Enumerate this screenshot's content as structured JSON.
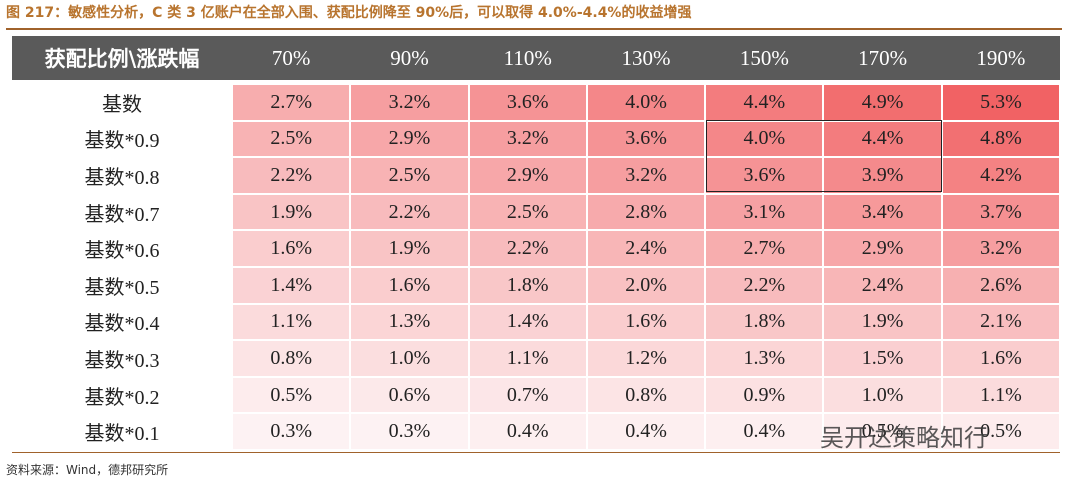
{
  "header": {
    "title": "图 217：敏感性分析，C 类 3 亿账户在全部入围、获配比例降至 90%后，可以取得 4.0%-4.4%的收益增强"
  },
  "table": {
    "columns": [
      "获配比例\\涨跌幅",
      "70%",
      "90%",
      "110%",
      "130%",
      "150%",
      "170%",
      "190%"
    ],
    "rows": [
      [
        "基数",
        "2.7%",
        "3.2%",
        "3.6%",
        "4.0%",
        "4.4%",
        "4.9%",
        "5.3%"
      ],
      [
        "基数*0.9",
        "2.5%",
        "2.9%",
        "3.2%",
        "3.6%",
        "4.0%",
        "4.4%",
        "4.8%"
      ],
      [
        "基数*0.8",
        "2.2%",
        "2.5%",
        "2.9%",
        "3.2%",
        "3.6%",
        "3.9%",
        "4.2%"
      ],
      [
        "基数*0.7",
        "1.9%",
        "2.2%",
        "2.5%",
        "2.8%",
        "3.1%",
        "3.4%",
        "3.7%"
      ],
      [
        "基数*0.6",
        "1.6%",
        "1.9%",
        "2.2%",
        "2.4%",
        "2.7%",
        "2.9%",
        "3.2%"
      ],
      [
        "基数*0.5",
        "1.4%",
        "1.6%",
        "1.8%",
        "2.0%",
        "2.2%",
        "2.4%",
        "2.6%"
      ],
      [
        "基数*0.4",
        "1.1%",
        "1.3%",
        "1.4%",
        "1.6%",
        "1.8%",
        "1.9%",
        "2.1%"
      ],
      [
        "基数*0.3",
        "0.8%",
        "1.0%",
        "1.1%",
        "1.2%",
        "1.3%",
        "1.5%",
        "1.6%"
      ],
      [
        "基数*0.2",
        "0.5%",
        "0.6%",
        "0.7%",
        "0.8%",
        "0.9%",
        "1.0%",
        "1.1%"
      ],
      [
        "基数*0.1",
        "0.3%",
        "0.3%",
        "0.4%",
        "0.4%",
        "0.4%",
        "0.5%",
        "0.5%"
      ]
    ]
  },
  "footer": {
    "source": "资料来源：Wind，德邦研究所",
    "watermark": "吴开达策略知行"
  }
}
